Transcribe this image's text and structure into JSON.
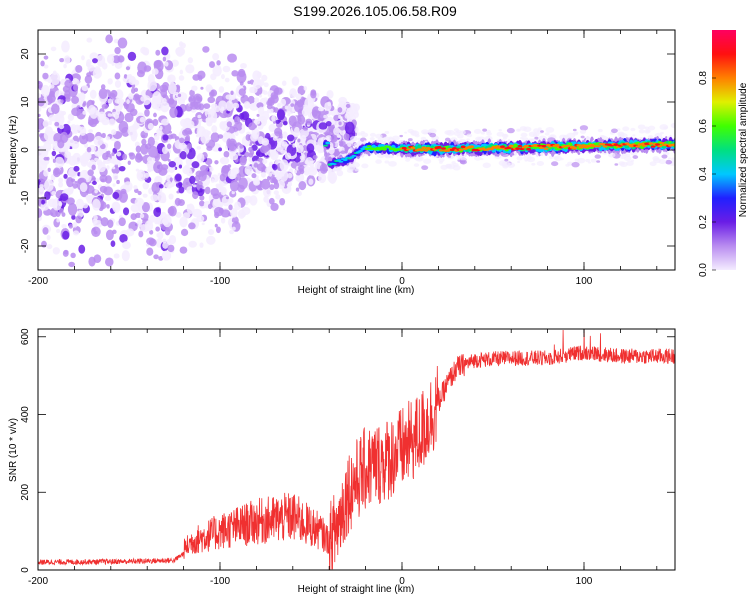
{
  "title": "S199.2026.105.06.58.R09",
  "chart_data": [
    {
      "type": "heatmap",
      "name": "spectrogram",
      "xlabel": "Height of straight line (km)",
      "ylabel": "Frequency (Hz)",
      "xlim": [
        -200,
        150
      ],
      "ylim": [
        -25,
        25
      ],
      "xticks": [
        -200,
        -100,
        0,
        100
      ],
      "xtick_labels": [
        "-200",
        "-100",
        "0",
        "100"
      ],
      "yticks": [
        -20,
        -10,
        0,
        10,
        20
      ],
      "ytick_labels": [
        "-20",
        "-10",
        "0",
        "10",
        "20"
      ],
      "colorbar": {
        "label": "Normalized spectral amplitude",
        "range": [
          0,
          1
        ],
        "ticks": [
          0,
          0.2,
          0.4,
          0.6,
          0.8
        ],
        "tick_labels": [
          "0.0",
          "0.2",
          "0.4",
          "0.6",
          "0.8"
        ],
        "colors": [
          "#f4ecff",
          "#b98cf0",
          "#6a1de6",
          "#2020ff",
          "#00c8ff",
          "#00e080",
          "#40ff00",
          "#e0f000",
          "#ff8000",
          "#ff1010",
          "#ff0060"
        ]
      },
      "ridge": {
        "description": "narrow carrier line above ~ -40 km",
        "points": [
          [
            -40,
            -3
          ],
          [
            -30,
            -2
          ],
          [
            -20,
            0.5
          ],
          [
            0,
            0.3
          ],
          [
            20,
            0.2
          ],
          [
            50,
            0.4
          ],
          [
            100,
            0.8
          ],
          [
            150,
            1.2
          ]
        ]
      }
    },
    {
      "type": "line",
      "name": "snr",
      "xlabel": "Height of straight line (km)",
      "ylabel": "SNR (10 * v/v)",
      "xlim": [
        -200,
        150
      ],
      "ylim": [
        0,
        620
      ],
      "xticks": [
        -200,
        -100,
        0,
        100
      ],
      "xtick_labels": [
        "-200",
        "-100",
        "0",
        "100"
      ],
      "yticks": [
        0,
        200,
        400,
        600
      ],
      "ytick_labels": [
        "0",
        "200",
        "400",
        "600"
      ],
      "color": "#f03030",
      "x": [
        -200,
        -150,
        -125,
        -115,
        -100,
        -80,
        -60,
        -45,
        -40,
        -35,
        -30,
        -20,
        -10,
        0,
        10,
        20,
        25,
        30,
        40,
        60,
        80,
        100,
        120,
        150
      ],
      "values": [
        20,
        22,
        25,
        60,
        80,
        100,
        110,
        80,
        60,
        120,
        200,
        260,
        280,
        310,
        350,
        430,
        480,
        520,
        540,
        545,
        545,
        560,
        550,
        550
      ]
    }
  ]
}
